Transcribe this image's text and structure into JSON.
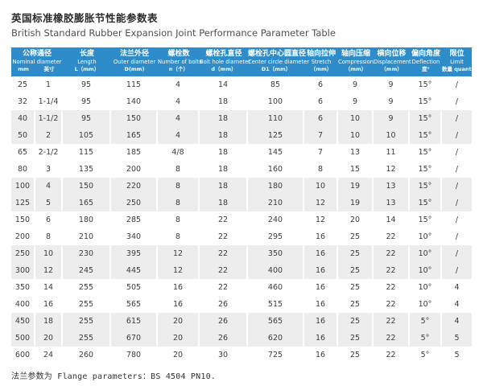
{
  "title": {
    "cn": "英国标准橡胶膨胀节性能参数表",
    "en": "British Standard Rubber Expansion Joint Performance Parameter Table"
  },
  "colors": {
    "header_bg": "#2e8cca",
    "stripe_bg": "#ededed",
    "header_text": "#ffffff"
  },
  "table": {
    "columns": [
      {
        "cn": "公称通径",
        "en": "Nominal diameter",
        "unit": ""
      },
      {
        "cn": "长度",
        "en": "Length",
        "unit": "L（mm）"
      },
      {
        "cn": "法兰外径",
        "en": "Outer diameter",
        "unit": "D(mm)"
      },
      {
        "cn": "螺栓数",
        "en": "Number of bolts",
        "unit": "n（个）"
      },
      {
        "cn": "螺栓孔直径",
        "en": "Bolt hole diameter",
        "unit": "d（mm）"
      },
      {
        "cn": "螺栓孔中心圆直径",
        "en": "Center circle diameter",
        "unit": "D1（mm）"
      },
      {
        "cn": "轴向拉伸",
        "en": "Stretch",
        "unit": "（mm）"
      },
      {
        "cn": "轴向压缩",
        "en": "Compression",
        "unit": "（mm）"
      },
      {
        "cn": "横向位移",
        "en": "Displacement",
        "unit": "（mm）"
      },
      {
        "cn": "偏向角度",
        "en": "Deflection",
        "unit": "度°"
      },
      {
        "cn": "限位",
        "en": "Limit",
        "unit": "数量 quantity"
      }
    ],
    "nominal_subunits": [
      "mm",
      "英寸"
    ],
    "rows": [
      [
        "25",
        "1",
        "95",
        "115",
        "4",
        "14",
        "85",
        "6",
        "9",
        "9",
        "15°",
        "/"
      ],
      [
        "32",
        "1-1/4",
        "95",
        "140",
        "4",
        "18",
        "100",
        "6",
        "9",
        "9",
        "15°",
        "/"
      ],
      [
        "40",
        "1-1/2",
        "95",
        "150",
        "4",
        "18",
        "110",
        "6",
        "10",
        "9",
        "15°",
        "/"
      ],
      [
        "50",
        "2",
        "105",
        "165",
        "4",
        "18",
        "125",
        "7",
        "10",
        "10",
        "15°",
        "/"
      ],
      [
        "65",
        "2-1/2",
        "115",
        "185",
        "4/8",
        "18",
        "145",
        "7",
        "13",
        "11",
        "15°",
        "/"
      ],
      [
        "80",
        "3",
        "135",
        "200",
        "8",
        "18",
        "160",
        "8",
        "15",
        "12",
        "15°",
        "/"
      ],
      [
        "100",
        "4",
        "150",
        "220",
        "8",
        "18",
        "180",
        "10",
        "19",
        "13",
        "15°",
        "/"
      ],
      [
        "125",
        "5",
        "165",
        "250",
        "8",
        "18",
        "210",
        "12",
        "19",
        "13",
        "15°",
        "/"
      ],
      [
        "150",
        "6",
        "180",
        "285",
        "8",
        "22",
        "240",
        "12",
        "20",
        "14",
        "15°",
        "/"
      ],
      [
        "200",
        "8",
        "210",
        "340",
        "8",
        "22",
        "295",
        "16",
        "25",
        "22",
        "10°",
        "/"
      ],
      [
        "250",
        "10",
        "230",
        "395",
        "12",
        "22",
        "350",
        "16",
        "25",
        "22",
        "10°",
        "/"
      ],
      [
        "300",
        "12",
        "245",
        "445",
        "12",
        "22",
        "400",
        "16",
        "25",
        "22",
        "10°",
        "/"
      ],
      [
        "350",
        "14",
        "255",
        "505",
        "16",
        "22",
        "460",
        "16",
        "25",
        "22",
        "10°",
        "4"
      ],
      [
        "400",
        "16",
        "255",
        "565",
        "16",
        "26",
        "515",
        "16",
        "25",
        "22",
        "10°",
        "4"
      ],
      [
        "450",
        "18",
        "255",
        "615",
        "20",
        "26",
        "565",
        "16",
        "25",
        "22",
        "5°",
        "4"
      ],
      [
        "500",
        "20",
        "255",
        "670",
        "20",
        "26",
        "620",
        "16",
        "25",
        "22",
        "5°",
        "5"
      ],
      [
        "600",
        "24",
        "260",
        "780",
        "20",
        "30",
        "725",
        "16",
        "25",
        "22",
        "5°",
        "5"
      ]
    ]
  },
  "footer": {
    "note": "法兰参数为 Flange parameters：BS 4504 PN10."
  }
}
